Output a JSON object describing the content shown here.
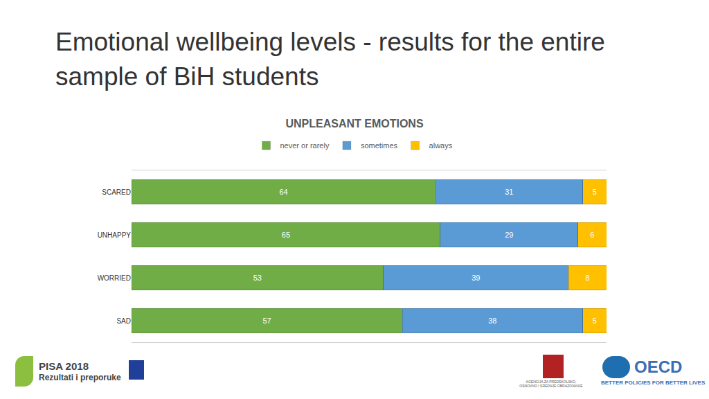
{
  "heading": "Emotional wellbeing levels - results for the entire sample of BiH students",
  "chart_data": {
    "type": "bar",
    "title": "UNPLEASANT EMOTIONS",
    "orientation": "horizontal",
    "stacked": true,
    "data_labels": true,
    "tick_labels": "y",
    "legend": "top",
    "grid": false,
    "categories": [
      "SCARED",
      "UNHAPPY",
      "WORRIED",
      "SAD"
    ],
    "series": [
      {
        "name": "never or rarely",
        "color": "#70ad47",
        "values": [
          64,
          65,
          53,
          57
        ]
      },
      {
        "name": "sometimes",
        "color": "#5b9bd5",
        "values": [
          31,
          29,
          39,
          38
        ]
      },
      {
        "name": "always",
        "color": "#ffc000",
        "values": [
          5,
          6,
          8,
          5
        ]
      }
    ],
    "xlim": [
      0,
      100
    ],
    "xticks": []
  },
  "footer": [
    "PISA 2018",
    "Rezultati i preporuke",
    "OECD",
    "BETTER POLICIES FOR BETTER LIVES",
    "AGENCIJA ZA PREDŠKOLSKO, OSNOVNO I SREDNJE OBRAZOVANJE"
  ]
}
